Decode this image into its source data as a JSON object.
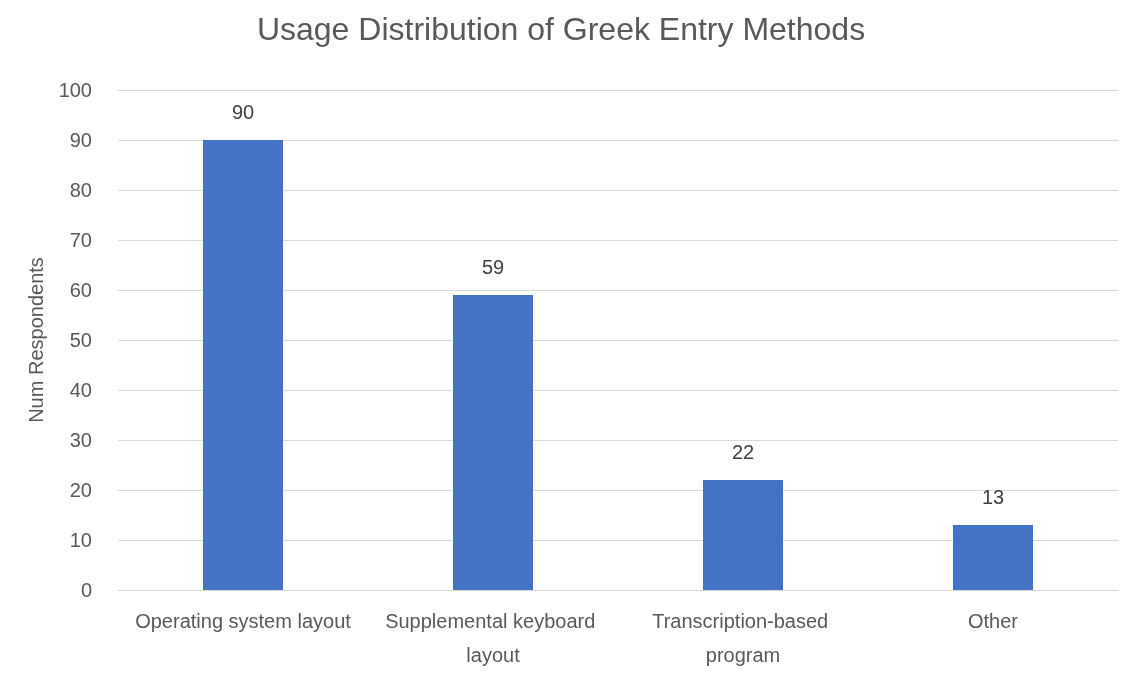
{
  "chart_data": {
    "type": "bar",
    "title": "Usage Distribution of Greek Entry Methods",
    "ylabel": "Num Respondents",
    "categories": [
      "Operating system layout",
      "Supplemental keyboard layout",
      "Transcription-based program",
      "Other"
    ],
    "values": [
      90,
      59,
      22,
      13
    ],
    "color": "#4472c4",
    "ylim": [
      0,
      100
    ],
    "yticks": [
      0,
      10,
      20,
      30,
      40,
      50,
      60,
      70,
      80,
      90,
      100
    ],
    "grid": "y",
    "data_labels": true
  }
}
